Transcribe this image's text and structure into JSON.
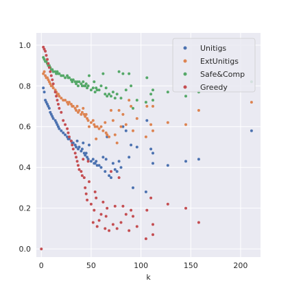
{
  "chart_data": {
    "type": "scatter",
    "title": "",
    "xlabel": "k",
    "ylabel": "",
    "xlim": [
      -5,
      220
    ],
    "ylim": [
      -0.04,
      1.06
    ],
    "xticks": [
      0,
      50,
      100,
      150,
      200
    ],
    "yticks": [
      0.0,
      0.2,
      0.4,
      0.6,
      0.8,
      1.0
    ],
    "grid": true,
    "legend_position": "top-right",
    "series": [
      {
        "name": "Unitigs",
        "color": "#4c72b0",
        "points": [
          [
            2,
            0.79
          ],
          [
            3,
            0.77
          ],
          [
            4,
            0.73
          ],
          [
            5,
            0.72
          ],
          [
            6,
            0.71
          ],
          [
            7,
            0.7
          ],
          [
            8,
            0.69
          ],
          [
            9,
            0.67
          ],
          [
            10,
            0.66
          ],
          [
            11,
            0.65
          ],
          [
            12,
            0.64
          ],
          [
            14,
            0.63
          ],
          [
            15,
            0.62
          ],
          [
            16,
            0.61
          ],
          [
            17,
            0.6
          ],
          [
            18,
            0.59
          ],
          [
            20,
            0.58
          ],
          [
            22,
            0.57
          ],
          [
            24,
            0.56
          ],
          [
            26,
            0.55
          ],
          [
            27,
            0.54
          ],
          [
            28,
            0.54
          ],
          [
            30,
            0.53
          ],
          [
            31,
            0.52
          ],
          [
            32,
            0.52
          ],
          [
            34,
            0.51
          ],
          [
            35,
            0.5
          ],
          [
            36,
            0.53
          ],
          [
            37,
            0.49
          ],
          [
            38,
            0.5
          ],
          [
            40,
            0.48
          ],
          [
            41,
            0.49
          ],
          [
            42,
            0.52
          ],
          [
            43,
            0.47
          ],
          [
            44,
            0.46
          ],
          [
            45,
            0.47
          ],
          [
            46,
            0.45
          ],
          [
            47,
            0.44
          ],
          [
            48,
            0.51
          ],
          [
            50,
            0.43
          ],
          [
            52,
            0.44
          ],
          [
            53,
            0.42
          ],
          [
            54,
            0.42
          ],
          [
            55,
            0.43
          ],
          [
            56,
            0.41
          ],
          [
            58,
            0.41
          ],
          [
            60,
            0.4
          ],
          [
            62,
            0.45
          ],
          [
            64,
            0.38
          ],
          [
            65,
            0.44
          ],
          [
            66,
            0.55
          ],
          [
            68,
            0.36
          ],
          [
            70,
            0.35
          ],
          [
            72,
            0.42
          ],
          [
            74,
            0.39
          ],
          [
            76,
            0.38
          ],
          [
            78,
            0.43
          ],
          [
            80,
            0.4
          ],
          [
            82,
            0.6
          ],
          [
            85,
            0.58
          ],
          [
            88,
            0.45
          ],
          [
            90,
            0.51
          ],
          [
            92,
            0.3
          ],
          [
            96,
            0.5
          ],
          [
            105,
            0.28
          ],
          [
            106,
            0.63
          ],
          [
            110,
            0.49
          ],
          [
            112,
            0.47
          ],
          [
            112,
            0.42
          ],
          [
            127,
            0.41
          ],
          [
            145,
            0.43
          ],
          [
            158,
            0.44
          ],
          [
            211,
            0.58
          ]
        ]
      },
      {
        "name": "ExtUnitigs",
        "color": "#dd8452",
        "points": [
          [
            2,
            0.86
          ],
          [
            3,
            0.87
          ],
          [
            4,
            0.85
          ],
          [
            5,
            0.84
          ],
          [
            6,
            0.84
          ],
          [
            7,
            0.83
          ],
          [
            8,
            0.82
          ],
          [
            9,
            0.81
          ],
          [
            10,
            0.8
          ],
          [
            11,
            0.8
          ],
          [
            12,
            0.79
          ],
          [
            14,
            0.78
          ],
          [
            15,
            0.77
          ],
          [
            16,
            0.76
          ],
          [
            17,
            0.76
          ],
          [
            18,
            0.75
          ],
          [
            20,
            0.74
          ],
          [
            22,
            0.73
          ],
          [
            24,
            0.73
          ],
          [
            26,
            0.72
          ],
          [
            27,
            0.71
          ],
          [
            28,
            0.72
          ],
          [
            30,
            0.71
          ],
          [
            31,
            0.7
          ],
          [
            32,
            0.7
          ],
          [
            34,
            0.69
          ],
          [
            35,
            0.68
          ],
          [
            36,
            0.7
          ],
          [
            37,
            0.67
          ],
          [
            38,
            0.68
          ],
          [
            40,
            0.66
          ],
          [
            41,
            0.67
          ],
          [
            42,
            0.69
          ],
          [
            43,
            0.66
          ],
          [
            44,
            0.65
          ],
          [
            45,
            0.66
          ],
          [
            46,
            0.64
          ],
          [
            47,
            0.63
          ],
          [
            48,
            0.6
          ],
          [
            50,
            0.62
          ],
          [
            52,
            0.63
          ],
          [
            53,
            0.61
          ],
          [
            54,
            0.6
          ],
          [
            55,
            0.54
          ],
          [
            56,
            0.6
          ],
          [
            58,
            0.59
          ],
          [
            60,
            0.6
          ],
          [
            62,
            0.58
          ],
          [
            64,
            0.62
          ],
          [
            65,
            0.57
          ],
          [
            66,
            0.56
          ],
          [
            68,
            0.55
          ],
          [
            70,
            0.68
          ],
          [
            72,
            0.63
          ],
          [
            74,
            0.56
          ],
          [
            76,
            0.52
          ],
          [
            78,
            0.68
          ],
          [
            80,
            0.6
          ],
          [
            82,
            0.66
          ],
          [
            85,
            0.61
          ],
          [
            88,
            0.73
          ],
          [
            90,
            0.7
          ],
          [
            92,
            0.58
          ],
          [
            96,
            0.64
          ],
          [
            105,
            0.55
          ],
          [
            106,
            0.7
          ],
          [
            110,
            0.61
          ],
          [
            112,
            0.7
          ],
          [
            112,
            0.58
          ],
          [
            127,
            0.62
          ],
          [
            145,
            0.61
          ],
          [
            158,
            0.68
          ],
          [
            211,
            0.72
          ]
        ]
      },
      {
        "name": "Safe&Comp",
        "color": "#55a868",
        "points": [
          [
            2,
            0.94
          ],
          [
            3,
            0.93
          ],
          [
            4,
            0.92
          ],
          [
            5,
            0.92
          ],
          [
            6,
            0.91
          ],
          [
            7,
            0.9
          ],
          [
            8,
            0.9
          ],
          [
            9,
            0.89
          ],
          [
            10,
            0.88
          ],
          [
            11,
            0.88
          ],
          [
            12,
            0.87
          ],
          [
            14,
            0.87
          ],
          [
            15,
            0.86
          ],
          [
            16,
            0.87
          ],
          [
            17,
            0.86
          ],
          [
            18,
            0.86
          ],
          [
            20,
            0.85
          ],
          [
            22,
            0.85
          ],
          [
            24,
            0.84
          ],
          [
            26,
            0.85
          ],
          [
            27,
            0.84
          ],
          [
            28,
            0.84
          ],
          [
            30,
            0.83
          ],
          [
            31,
            0.82
          ],
          [
            32,
            0.83
          ],
          [
            34,
            0.82
          ],
          [
            35,
            0.81
          ],
          [
            36,
            0.82
          ],
          [
            37,
            0.8
          ],
          [
            38,
            0.82
          ],
          [
            40,
            0.81
          ],
          [
            41,
            0.8
          ],
          [
            42,
            0.82
          ],
          [
            43,
            0.8
          ],
          [
            44,
            0.8
          ],
          [
            45,
            0.81
          ],
          [
            46,
            0.79
          ],
          [
            47,
            0.8
          ],
          [
            48,
            0.85
          ],
          [
            50,
            0.78
          ],
          [
            52,
            0.79
          ],
          [
            53,
            0.82
          ],
          [
            54,
            0.77
          ],
          [
            55,
            0.79
          ],
          [
            56,
            0.78
          ],
          [
            58,
            0.78
          ],
          [
            60,
            0.8
          ],
          [
            62,
            0.86
          ],
          [
            64,
            0.76
          ],
          [
            65,
            0.79
          ],
          [
            66,
            0.75
          ],
          [
            68,
            0.76
          ],
          [
            70,
            0.75
          ],
          [
            72,
            0.77
          ],
          [
            74,
            0.74
          ],
          [
            76,
            0.76
          ],
          [
            78,
            0.87
          ],
          [
            80,
            0.74
          ],
          [
            82,
            0.86
          ],
          [
            85,
            0.78
          ],
          [
            88,
            0.86
          ],
          [
            90,
            0.8
          ],
          [
            92,
            0.69
          ],
          [
            96,
            0.73
          ],
          [
            105,
            0.72
          ],
          [
            106,
            0.84
          ],
          [
            110,
            0.76
          ],
          [
            112,
            0.73
          ],
          [
            112,
            0.78
          ],
          [
            127,
            0.77
          ],
          [
            145,
            0.75
          ],
          [
            158,
            0.77
          ],
          [
            211,
            0.82
          ]
        ]
      },
      {
        "name": "Greedy",
        "color": "#c44e52",
        "points": [
          [
            0,
            0.0
          ],
          [
            2,
            0.99
          ],
          [
            3,
            0.98
          ],
          [
            4,
            0.97
          ],
          [
            5,
            0.95
          ],
          [
            6,
            0.93
          ],
          [
            7,
            0.91
          ],
          [
            8,
            0.89
          ],
          [
            9,
            0.87
          ],
          [
            10,
            0.85
          ],
          [
            11,
            0.83
          ],
          [
            12,
            0.81
          ],
          [
            14,
            0.77
          ],
          [
            15,
            0.75
          ],
          [
            16,
            0.73
          ],
          [
            17,
            0.71
          ],
          [
            18,
            0.69
          ],
          [
            20,
            0.67
          ],
          [
            22,
            0.63
          ],
          [
            24,
            0.61
          ],
          [
            26,
            0.59
          ],
          [
            27,
            0.57
          ],
          [
            28,
            0.55
          ],
          [
            30,
            0.53
          ],
          [
            31,
            0.51
          ],
          [
            32,
            0.49
          ],
          [
            34,
            0.47
          ],
          [
            35,
            0.45
          ],
          [
            36,
            0.43
          ],
          [
            37,
            0.41
          ],
          [
            38,
            0.39
          ],
          [
            40,
            0.38
          ],
          [
            41,
            0.36
          ],
          [
            42,
            0.44
          ],
          [
            43,
            0.35
          ],
          [
            44,
            0.3
          ],
          [
            45,
            0.27
          ],
          [
            46,
            0.24
          ],
          [
            47,
            0.43
          ],
          [
            48,
            0.33
          ],
          [
            50,
            0.22
          ],
          [
            52,
            0.13
          ],
          [
            53,
            0.19
          ],
          [
            54,
            0.28
          ],
          [
            55,
            0.25
          ],
          [
            56,
            0.11
          ],
          [
            58,
            0.14
          ],
          [
            60,
            0.17
          ],
          [
            62,
            0.23
          ],
          [
            64,
            0.1
          ],
          [
            65,
            0.16
          ],
          [
            66,
            0.2
          ],
          [
            68,
            0.09
          ],
          [
            70,
            0.38
          ],
          [
            72,
            0.12
          ],
          [
            74,
            0.21
          ],
          [
            76,
            0.1
          ],
          [
            78,
            0.35
          ],
          [
            80,
            0.13
          ],
          [
            82,
            0.21
          ],
          [
            85,
            0.17
          ],
          [
            88,
            0.09
          ],
          [
            90,
            0.19
          ],
          [
            92,
            0.16
          ],
          [
            96,
            0.11
          ],
          [
            105,
            0.05
          ],
          [
            106,
            0.19
          ],
          [
            110,
            0.25
          ],
          [
            112,
            0.12
          ],
          [
            112,
            0.07
          ],
          [
            127,
            0.22
          ],
          [
            145,
            0.2
          ],
          [
            158,
            0.13
          ]
        ]
      }
    ]
  }
}
